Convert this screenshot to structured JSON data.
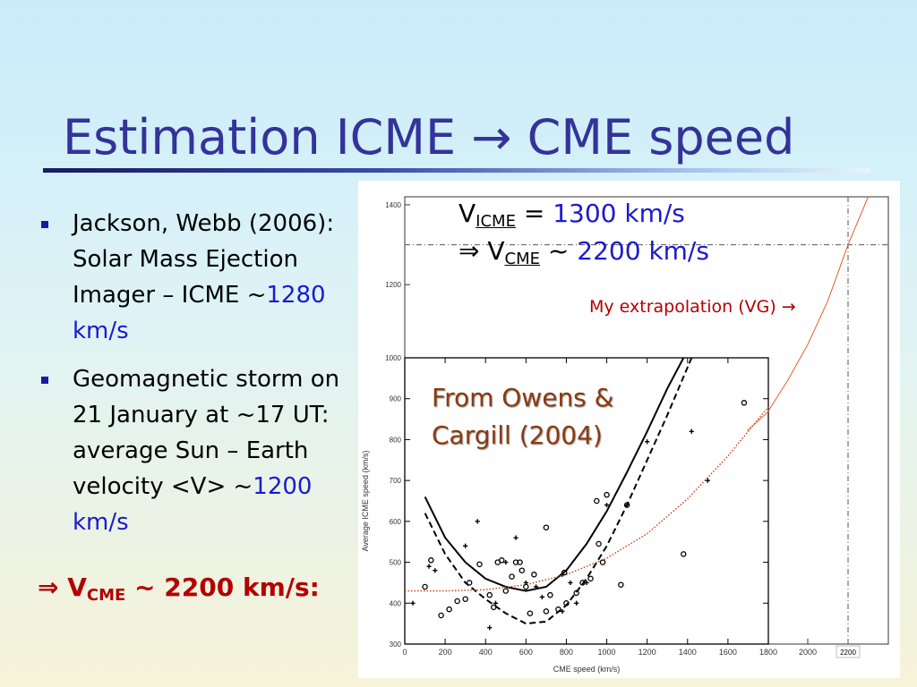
{
  "slide": {
    "title": "Estimation ICME → CME speed",
    "bullets": [
      {
        "text": "Jackson, Webb (2006): Solar Mass Ejection Imager – ICME ~",
        "value": "1280 km/s"
      },
      {
        "text": "Geomagnetic storm on 21 January at ~17 UT: average Sun – Earth velocity <V> ~",
        "value": "1200 km/s"
      }
    ],
    "conclusion": {
      "arrow": "⇒",
      "v": "V",
      "sub": "CME",
      "rest": " ~ 2200 km/s:"
    }
  },
  "figure": {
    "vicme": {
      "v": "V",
      "sub": "ICME",
      "eq": " = ",
      "value": "1300 km/s"
    },
    "vcme": {
      "arrow": "⇒",
      "v": " V",
      "sub": "CME",
      "tilde": " ~ ",
      "value": "2200 km/s"
    },
    "extrapolation_label": "My extrapolation (VG) →",
    "source_label_line1": "From Owens &",
    "source_label_line2": "Cargill (2004)"
  },
  "colors": {
    "title": "#333399",
    "highlight": "#1a1ad0",
    "conclusion": "#b30000",
    "extrapolation": "#e0602a",
    "source_label": "#8b3a10"
  },
  "chart_data": {
    "type": "scatter",
    "xlabel": "CME speed (km/s)",
    "ylabel": "Average ICME speed (km/s)",
    "x_ticks_inner": [
      0,
      200,
      400,
      600,
      800,
      1000,
      1200,
      1400,
      1600,
      1800
    ],
    "x_ticks_outer": [
      2000
    ],
    "x_marker_label": "2200",
    "y_ticks_inner": [
      300,
      400,
      500,
      600,
      700,
      800,
      900,
      1000
    ],
    "y_ticks_outer": [
      1200,
      1400
    ],
    "xlim": [
      0,
      2400
    ],
    "ylim": [
      300,
      1420
    ],
    "inner_xlim": [
      0,
      1800
    ],
    "inner_ylim": [
      300,
      1000
    ],
    "reference_lines": {
      "x": 2200,
      "y": 1300
    },
    "series": [
      {
        "marker": "circle",
        "points": [
          [
            100,
            440
          ],
          [
            130,
            505
          ],
          [
            180,
            370
          ],
          [
            220,
            385
          ],
          [
            260,
            405
          ],
          [
            300,
            410
          ],
          [
            320,
            450
          ],
          [
            370,
            495
          ],
          [
            420,
            420
          ],
          [
            440,
            390
          ],
          [
            460,
            500
          ],
          [
            480,
            505
          ],
          [
            500,
            430
          ],
          [
            530,
            465
          ],
          [
            550,
            500
          ],
          [
            570,
            500
          ],
          [
            580,
            480
          ],
          [
            600,
            440
          ],
          [
            620,
            375
          ],
          [
            640,
            470
          ],
          [
            700,
            380
          ],
          [
            720,
            420
          ],
          [
            760,
            385
          ],
          [
            790,
            475
          ],
          [
            800,
            400
          ],
          [
            850,
            425
          ],
          [
            880,
            450
          ],
          [
            920,
            460
          ],
          [
            950,
            650
          ],
          [
            960,
            545
          ],
          [
            980,
            500
          ],
          [
            1000,
            665
          ],
          [
            1070,
            445
          ],
          [
            1100,
            640
          ],
          [
            1380,
            520
          ],
          [
            1680,
            890
          ],
          [
            700,
            585
          ]
        ]
      },
      {
        "marker": "plus",
        "points": [
          [
            40,
            400
          ],
          [
            120,
            490
          ],
          [
            150,
            480
          ],
          [
            300,
            540
          ],
          [
            360,
            600
          ],
          [
            420,
            340
          ],
          [
            450,
            400
          ],
          [
            500,
            500
          ],
          [
            550,
            560
          ],
          [
            600,
            450
          ],
          [
            650,
            440
          ],
          [
            780,
            380
          ],
          [
            820,
            450
          ],
          [
            850,
            400
          ],
          [
            900,
            450
          ],
          [
            1000,
            640
          ],
          [
            1100,
            640
          ],
          [
            1200,
            795
          ],
          [
            1420,
            820
          ],
          [
            1500,
            700
          ],
          [
            780,
            470
          ],
          [
            680,
            415
          ]
        ]
      }
    ],
    "fits": [
      {
        "style": "solid",
        "points": [
          [
            100,
            660
          ],
          [
            200,
            560
          ],
          [
            300,
            500
          ],
          [
            400,
            460
          ],
          [
            500,
            440
          ],
          [
            600,
            430
          ],
          [
            700,
            440
          ],
          [
            800,
            480
          ],
          [
            900,
            545
          ],
          [
            1000,
            625
          ],
          [
            1100,
            720
          ],
          [
            1200,
            820
          ],
          [
            1300,
            925
          ],
          [
            1380,
            1000
          ]
        ]
      },
      {
        "style": "dashed",
        "points": [
          [
            100,
            620
          ],
          [
            200,
            520
          ],
          [
            300,
            450
          ],
          [
            400,
            410
          ],
          [
            500,
            375
          ],
          [
            600,
            350
          ],
          [
            700,
            355
          ],
          [
            800,
            395
          ],
          [
            900,
            460
          ],
          [
            1000,
            540
          ],
          [
            1100,
            640
          ],
          [
            1200,
            750
          ],
          [
            1300,
            860
          ],
          [
            1420,
            1000
          ]
        ]
      },
      {
        "style": "dotted",
        "points": [
          [
            0,
            430
          ],
          [
            200,
            430
          ],
          [
            400,
            433
          ],
          [
            600,
            445
          ],
          [
            800,
            470
          ],
          [
            1000,
            510
          ],
          [
            1200,
            570
          ],
          [
            1400,
            655
          ],
          [
            1600,
            760
          ],
          [
            1800,
            880
          ]
        ]
      },
      {
        "style": "extrapolation",
        "points": [
          [
            1700,
            835
          ],
          [
            1800,
            880
          ],
          [
            1900,
            960
          ],
          [
            2000,
            1050
          ],
          [
            2100,
            1160
          ],
          [
            2200,
            1300
          ],
          [
            2300,
            1420
          ]
        ]
      }
    ]
  }
}
